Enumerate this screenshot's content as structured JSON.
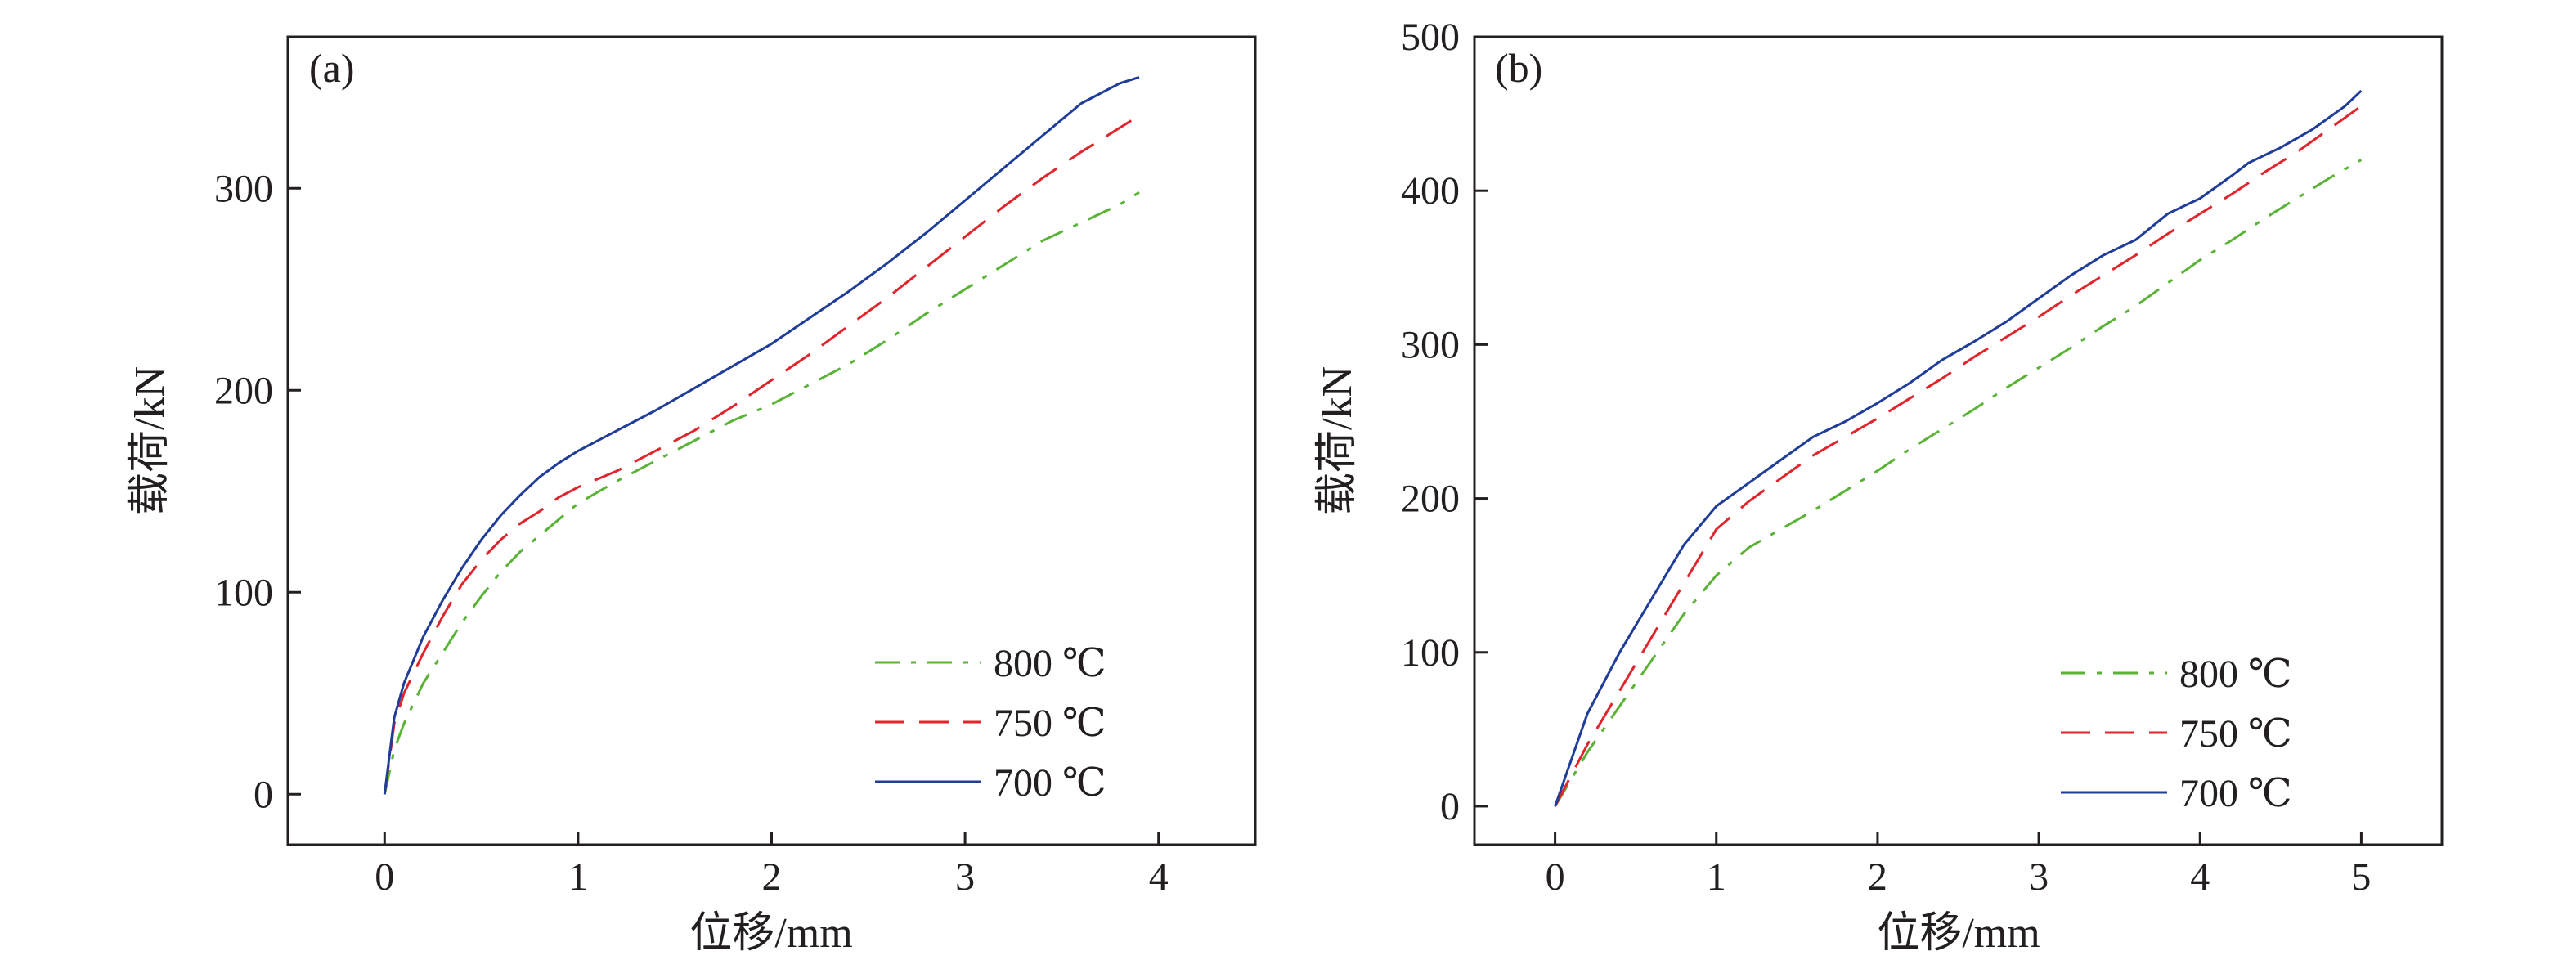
{
  "chart_data": [
    {
      "type": "line",
      "panel_label": "(a)",
      "xlabel": "位移/mm",
      "ylabel": "载荷/kN",
      "xlim": [
        -0.5,
        4.5
      ],
      "ylim": [
        -25,
        375
      ],
      "xticks": [
        0,
        1,
        2,
        3,
        4
      ],
      "yticks": [
        0,
        100,
        200,
        300
      ],
      "xtick_labels": [
        "0",
        "1",
        "2",
        "3",
        "4"
      ],
      "ytick_labels": [
        "0",
        "100",
        "200",
        "300"
      ],
      "grid": false,
      "legend_position": "bottom-right",
      "series": [
        {
          "name": "800 ℃",
          "color": "#5ab336",
          "dash": "dashdot",
          "x": [
            0,
            0.05,
            0.1,
            0.2,
            0.3,
            0.4,
            0.5,
            0.6,
            0.7,
            0.8,
            0.9,
            1.0,
            1.2,
            1.4,
            1.6,
            1.8,
            2.0,
            2.2,
            2.4,
            2.6,
            2.8,
            3.0,
            3.2,
            3.4,
            3.6,
            3.8,
            3.9
          ],
          "y": [
            0,
            22,
            35,
            55,
            70,
            85,
            98,
            110,
            120,
            128,
            136,
            144,
            155,
            165,
            175,
            185,
            193,
            203,
            213,
            225,
            238,
            250,
            262,
            274,
            283,
            292,
            298
          ]
        },
        {
          "name": "750 ℃",
          "color": "#e0252c",
          "dash": "dashed",
          "x": [
            0,
            0.05,
            0.1,
            0.2,
            0.3,
            0.4,
            0.5,
            0.6,
            0.7,
            0.8,
            0.9,
            1.0,
            1.2,
            1.4,
            1.6,
            1.8,
            2.0,
            2.2,
            2.4,
            2.6,
            2.8,
            3.0,
            3.2,
            3.4,
            3.6,
            3.8,
            3.9
          ],
          "y": [
            0,
            35,
            50,
            70,
            88,
            104,
            116,
            126,
            134,
            140,
            147,
            152,
            160,
            170,
            180,
            192,
            205,
            218,
            232,
            246,
            261,
            276,
            291,
            305,
            318,
            330,
            336
          ]
        },
        {
          "name": "700 ℃",
          "color": "#1f3d99",
          "dash": "solid",
          "x": [
            0,
            0.05,
            0.1,
            0.2,
            0.3,
            0.4,
            0.5,
            0.6,
            0.7,
            0.8,
            0.9,
            1.0,
            1.2,
            1.4,
            1.6,
            1.8,
            2.0,
            2.2,
            2.4,
            2.6,
            2.8,
            3.0,
            3.2,
            3.4,
            3.6,
            3.8,
            3.9
          ],
          "y": [
            0,
            38,
            55,
            78,
            96,
            112,
            126,
            138,
            148,
            157,
            164,
            170,
            180,
            190,
            201,
            212,
            223,
            236,
            249,
            263,
            278,
            294,
            310,
            326,
            342,
            352,
            355
          ]
        }
      ]
    },
    {
      "type": "line",
      "panel_label": "(b)",
      "xlabel": "位移/mm",
      "ylabel": "载荷/kN",
      "xlim": [
        -0.5,
        5.5
      ],
      "ylim": [
        -25,
        500
      ],
      "xticks": [
        0,
        1,
        2,
        3,
        4,
        5
      ],
      "yticks": [
        0,
        100,
        200,
        300,
        400,
        500
      ],
      "xtick_labels": [
        "0",
        "1",
        "2",
        "3",
        "4",
        "5"
      ],
      "ytick_labels": [
        "0",
        "100",
        "200",
        "300",
        "400",
        "500"
      ],
      "grid": false,
      "legend_position": "bottom-right",
      "series": [
        {
          "name": "800 ℃",
          "color": "#5ab336",
          "dash": "dashdot",
          "x": [
            0,
            0.2,
            0.4,
            0.6,
            0.8,
            1.0,
            1.2,
            1.4,
            1.6,
            1.8,
            2.0,
            2.2,
            2.4,
            2.6,
            2.8,
            3.0,
            3.2,
            3.4,
            3.6,
            3.8,
            4.0,
            4.2,
            4.4,
            4.6,
            4.8,
            5.0
          ],
          "y": [
            0,
            35,
            65,
            95,
            125,
            150,
            168,
            180,
            192,
            205,
            218,
            232,
            245,
            258,
            272,
            285,
            298,
            312,
            325,
            340,
            355,
            368,
            382,
            395,
            408,
            420
          ]
        },
        {
          "name": "750 ℃",
          "color": "#e0252c",
          "dash": "dashed",
          "x": [
            0,
            0.2,
            0.4,
            0.6,
            0.8,
            1.0,
            1.2,
            1.4,
            1.6,
            1.8,
            2.0,
            2.2,
            2.4,
            2.6,
            2.8,
            3.0,
            3.2,
            3.4,
            3.6,
            3.8,
            4.0,
            4.2,
            4.4,
            4.6,
            4.8,
            5.0
          ],
          "y": [
            0,
            40,
            75,
            110,
            145,
            180,
            198,
            213,
            228,
            240,
            252,
            265,
            278,
            292,
            305,
            318,
            332,
            345,
            358,
            372,
            385,
            398,
            412,
            425,
            440,
            455
          ]
        },
        {
          "name": "700 ℃",
          "color": "#1f3d99",
          "dash": "solid",
          "x": [
            0,
            0.2,
            0.4,
            0.6,
            0.8,
            1.0,
            1.2,
            1.4,
            1.6,
            1.8,
            2.0,
            2.2,
            2.4,
            2.6,
            2.8,
            3.0,
            3.2,
            3.4,
            3.6,
            3.8,
            3.9,
            4.0,
            4.2,
            4.3,
            4.5,
            4.7,
            4.9,
            5.0
          ],
          "y": [
            0,
            60,
            100,
            135,
            170,
            195,
            210,
            225,
            240,
            250,
            262,
            275,
            290,
            302,
            315,
            330,
            345,
            358,
            368,
            385,
            390,
            395,
            410,
            418,
            428,
            440,
            455,
            465
          ]
        }
      ]
    }
  ]
}
